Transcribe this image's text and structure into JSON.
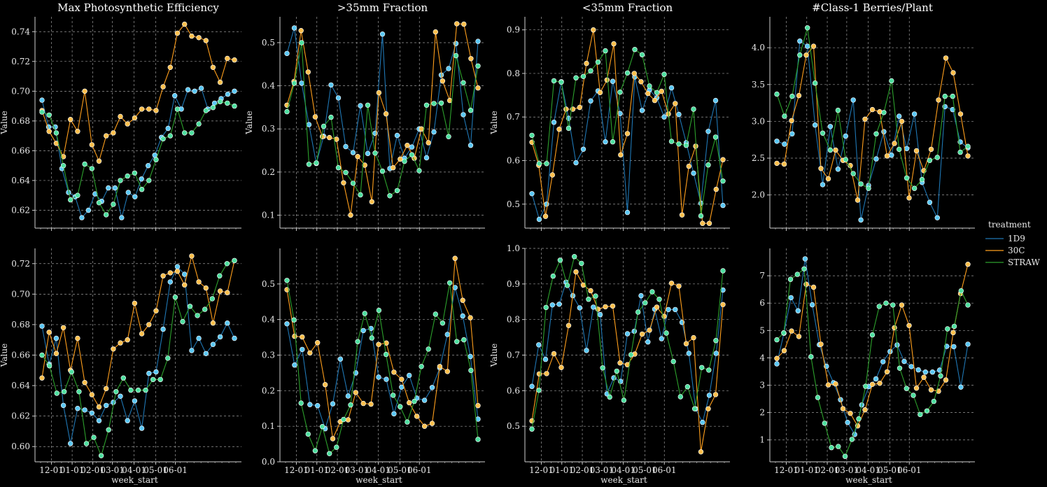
{
  "colors": {
    "1D9": "#1f77b4",
    "30C": "#ff9f1c",
    "STRAW": "#2ca02c",
    "background": "#000000",
    "grid": "#9a9a9a"
  },
  "legend": {
    "title": "treatment",
    "placement": "right-center",
    "entries": [
      "1D9",
      "30C",
      "STRAW"
    ]
  },
  "chart_data": [
    {
      "type": "line",
      "title": "Max Photosynthetic Efficiency",
      "xlabel": "",
      "ylabel": "Value",
      "ylim": [
        0.608,
        0.75
      ],
      "yticks": [
        "0.62",
        "0.64",
        "0.66",
        "0.68",
        "0.70",
        "0.72",
        "0.74"
      ],
      "x_ticks": [],
      "grid": true,
      "series": [
        {
          "name": "1D9",
          "values": [
            0.694,
            0.676,
            0.676,
            0.648,
            0.632,
            0.629,
            0.615,
            0.62,
            0.631,
            0.626,
            0.635,
            0.635,
            0.615,
            0.632,
            0.629,
            0.641,
            0.65,
            0.657,
            0.669,
            0.675,
            0.697,
            0.688,
            0.701,
            0.7,
            0.702,
            0.688,
            0.692,
            0.695,
            0.698,
            0.7
          ]
        },
        {
          "name": "30C",
          "values": [
            0.687,
            0.673,
            0.665,
            0.656,
            0.681,
            0.673,
            0.7,
            0.664,
            0.653,
            0.67,
            0.672,
            0.683,
            0.678,
            0.682,
            0.688,
            0.688,
            0.687,
            0.703,
            0.716,
            0.739,
            0.745,
            0.737,
            0.736,
            0.734,
            0.716,
            0.706,
            0.722,
            0.721
          ]
        },
        {
          "name": "STRAW",
          "values": [
            0.686,
            0.684,
            0.672,
            0.65,
            0.627,
            0.63,
            0.651,
            0.648,
            0.625,
            0.617,
            0.624,
            0.64,
            0.643,
            0.645,
            0.634,
            0.64,
            0.654,
            0.668,
            0.67,
            0.688,
            0.672,
            0.672,
            0.678,
            0.687,
            0.689,
            0.693,
            0.692,
            0.69
          ]
        }
      ]
    },
    {
      "type": "line",
      "title": ">35mm Fraction",
      "xlabel": "",
      "ylabel": "Value",
      "ylim": [
        0.07,
        0.56
      ],
      "yticks": [
        "0.1",
        "0.2",
        "0.3",
        "0.4",
        "0.5"
      ],
      "x_ticks": [],
      "grid": true,
      "series": [
        {
          "name": "1D9",
          "values": [
            0.475,
            0.534,
            0.406,
            0.31,
            0.22,
            0.283,
            0.402,
            0.372,
            0.259,
            0.245,
            0.354,
            0.243,
            0.29,
            0.52,
            0.208,
            0.285,
            0.232,
            0.258,
            0.3,
            0.233,
            0.293,
            0.425,
            0.44,
            0.498,
            0.333,
            0.262,
            0.503
          ]
        },
        {
          "name": "30C",
          "values": [
            0.355,
            0.41,
            0.528,
            0.432,
            0.328,
            0.282,
            0.28,
            0.276,
            0.175,
            0.1,
            0.236,
            0.216,
            0.131,
            0.384,
            0.335,
            0.21,
            0.23,
            0.262,
            0.232,
            0.3,
            0.268,
            0.525,
            0.411,
            0.366,
            0.544,
            0.543,
            0.463,
            0.395
          ]
        },
        {
          "name": "STRAW",
          "values": [
            0.34,
            0.406,
            0.5,
            0.218,
            0.221,
            0.306,
            0.327,
            0.21,
            0.199,
            0.174,
            0.147,
            0.355,
            0.244,
            0.202,
            0.145,
            0.157,
            0.225,
            0.24,
            0.203,
            0.355,
            0.359,
            0.36,
            0.282,
            0.47,
            0.407,
            0.343,
            0.446
          ]
        }
      ]
    },
    {
      "type": "line",
      "title": "<35mm Fraction",
      "xlabel": "",
      "ylabel": "Value",
      "ylim": [
        0.445,
        0.93
      ],
      "yticks": [
        "0.5",
        "0.6",
        "0.7",
        "0.8",
        "0.9"
      ],
      "x_ticks": [],
      "grid": true,
      "series": [
        {
          "name": "1D9",
          "values": [
            0.524,
            0.465,
            0.5,
            0.688,
            0.781,
            0.697,
            0.595,
            0.626,
            0.737,
            0.76,
            0.643,
            0.782,
            0.708,
            0.481,
            0.792,
            0.715,
            0.762,
            0.744,
            0.7,
            0.767,
            0.706,
            0.641,
            0.571,
            0.502,
            0.667,
            0.738,
            0.497
          ]
        },
        {
          "name": "30C",
          "values": [
            0.642,
            0.589,
            0.472,
            0.567,
            0.672,
            0.718,
            0.718,
            0.722,
            0.823,
            0.9,
            0.756,
            0.785,
            0.868,
            0.613,
            0.662,
            0.8,
            0.781,
            0.754,
            0.738,
            0.759,
            0.707,
            0.731,
            0.475,
            0.587,
            0.633,
            0.456,
            0.456,
            0.534,
            0.602
          ]
        },
        {
          "name": "STRAW",
          "values": [
            0.658,
            0.593,
            0.593,
            0.783,
            0.78,
            0.674,
            0.79,
            0.793,
            0.806,
            0.826,
            0.852,
            0.643,
            0.757,
            0.801,
            0.855,
            0.843,
            0.771,
            0.756,
            0.798,
            0.644,
            0.638,
            0.635,
            0.718,
            0.473,
            0.59,
            0.654,
            0.553
          ]
        }
      ]
    },
    {
      "type": "line",
      "title": "#Class-1 Berries/Plant",
      "xlabel": "",
      "ylabel": "",
      "ylim": [
        1.55,
        4.42
      ],
      "yticks": [
        "2.0",
        "2.5",
        "3.0",
        "3.5",
        "4.0"
      ],
      "x_ticks": [],
      "grid": true,
      "series": [
        {
          "name": "1D9",
          "values": [
            2.73,
            2.69,
            2.83,
            4.09,
            4.02,
            2.95,
            2.14,
            2.93,
            2.35,
            2.8,
            3.29,
            1.66,
            2.13,
            2.49,
            2.86,
            2.54,
            3.07,
            2.63,
            3.1,
            2.17,
            1.9,
            1.69,
            3.2,
            3.16,
            2.72,
            2.64
          ]
        },
        {
          "name": "30C",
          "values": [
            2.43,
            2.42,
            3.01,
            3.35,
            3.9,
            4.02,
            2.36,
            2.22,
            2.61,
            2.47,
            2.4,
            1.93,
            3.03,
            3.16,
            3.13,
            2.53,
            2.7,
            3.0,
            1.96,
            2.6,
            2.33,
            2.62,
            3.29,
            3.86,
            3.66,
            3.1,
            2.53
          ]
        },
        {
          "name": "STRAW",
          "values": [
            3.37,
            3.07,
            3.34,
            3.9,
            4.27,
            3.52,
            2.84,
            2.61,
            3.15,
            2.48,
            2.29,
            2.15,
            2.09,
            2.83,
            3.12,
            3.55,
            2.62,
            2.23,
            2.09,
            2.21,
            2.47,
            2.51,
            3.34,
            3.34,
            2.58,
            2.66
          ]
        }
      ]
    },
    {
      "type": "line",
      "title": "",
      "xlabel": "week_start",
      "ylabel": "Value",
      "ylim": [
        0.59,
        0.73
      ],
      "yticks": [
        "0.60",
        "0.62",
        "0.64",
        "0.66",
        "0.68",
        "0.70",
        "0.72"
      ],
      "x_ticks": [
        "12-01",
        "01-01",
        "02-01",
        "03-01",
        "04-01",
        "05-01",
        "06-01"
      ],
      "grid": true,
      "series": [
        {
          "name": "1D9",
          "values": [
            0.679,
            0.654,
            0.671,
            0.627,
            0.602,
            0.625,
            0.624,
            0.622,
            0.617,
            0.627,
            0.629,
            0.633,
            0.617,
            0.63,
            0.612,
            0.648,
            0.649,
            0.677,
            0.708,
            0.718,
            0.713,
            0.663,
            0.671,
            0.661,
            0.667,
            0.672,
            0.681,
            0.671
          ]
        },
        {
          "name": "30C",
          "values": [
            0.645,
            0.675,
            0.661,
            0.678,
            0.65,
            0.671,
            0.642,
            0.634,
            0.626,
            0.638,
            0.664,
            0.668,
            0.67,
            0.694,
            0.674,
            0.68,
            0.689,
            0.712,
            0.714,
            0.715,
            0.706,
            0.725,
            0.708,
            0.704,
            0.681,
            0.702,
            0.701,
            0.722
          ]
        },
        {
          "name": "STRAW",
          "values": [
            0.66,
            0.653,
            0.635,
            0.636,
            0.649,
            0.636,
            0.602,
            0.606,
            0.594,
            0.611,
            0.636,
            0.645,
            0.637,
            0.637,
            0.637,
            0.644,
            0.644,
            0.658,
            0.698,
            0.682,
            0.692,
            0.686,
            0.69,
            0.697,
            0.712,
            0.72,
            0.722
          ]
        }
      ]
    },
    {
      "type": "line",
      "title": "",
      "xlabel": "week_start",
      "ylabel": "",
      "ylim": [
        0.0,
        0.6
      ],
      "yticks": [
        "0.0",
        "0.1",
        "0.2",
        "0.3",
        "0.4",
        "0.5"
      ],
      "x_ticks": [
        "12-01",
        "01-01",
        "02-01",
        "03-01",
        "04-01",
        "05-01",
        "06-01"
      ],
      "grid": true,
      "series": [
        {
          "name": "1D9",
          "values": [
            0.388,
            0.272,
            0.316,
            0.161,
            0.158,
            0.093,
            0.163,
            0.289,
            0.185,
            0.25,
            0.369,
            0.375,
            0.238,
            0.232,
            0.135,
            0.21,
            0.243,
            0.179,
            0.173,
            0.209,
            0.264,
            0.358,
            0.49,
            0.41,
            0.296,
            0.12
          ]
        },
        {
          "name": "30C",
          "values": [
            0.484,
            0.353,
            0.351,
            0.306,
            0.335,
            0.217,
            0.065,
            0.113,
            0.118,
            0.195,
            0.164,
            0.162,
            0.33,
            0.334,
            0.252,
            0.232,
            0.166,
            0.128,
            0.1,
            0.108,
            0.268,
            0.254,
            0.572,
            0.454,
            0.405,
            0.158
          ]
        },
        {
          "name": "STRAW",
          "values": [
            0.51,
            0.399,
            0.165,
            0.078,
            0.031,
            0.099,
            0.023,
            0.041,
            0.119,
            0.16,
            0.338,
            0.417,
            0.348,
            0.426,
            0.302,
            0.187,
            0.155,
            0.112,
            0.17,
            0.268,
            0.317,
            0.415,
            0.39,
            0.503,
            0.338,
            0.343,
            0.257,
            0.063
          ]
        }
      ]
    },
    {
      "type": "line",
      "title": "",
      "xlabel": "week_start",
      "ylabel": "Value",
      "ylim": [
        0.4,
        1.0
      ],
      "yticks": [
        "0.5",
        "0.6",
        "0.7",
        "0.8",
        "0.9",
        "1.0"
      ],
      "x_ticks": [
        "12-01",
        "01-01",
        "02-01",
        "03-01",
        "04-01",
        "05-01",
        "06-01"
      ],
      "grid": true,
      "series": [
        {
          "name": "1D9",
          "values": [
            0.612,
            0.729,
            0.688,
            0.841,
            0.843,
            0.905,
            0.867,
            0.833,
            0.713,
            0.835,
            0.814,
            0.591,
            0.636,
            0.626,
            0.76,
            0.767,
            0.867,
            0.737,
            0.829,
            0.746,
            0.828,
            0.828,
            0.792,
            0.705,
            0.549,
            0.511,
            0.587,
            0.705,
            0.883
          ]
        },
        {
          "name": "30C",
          "values": [
            0.515,
            0.647,
            0.648,
            0.704,
            0.665,
            0.783,
            0.934,
            0.897,
            0.881,
            0.829,
            0.836,
            0.838,
            0.678,
            0.673,
            0.703,
            0.759,
            0.77,
            0.835,
            0.809,
            0.902,
            0.894,
            0.732,
            0.749,
            0.428,
            0.549,
            0.589,
            0.842
          ]
        },
        {
          "name": "STRAW",
          "values": [
            0.492,
            0.601,
            0.834,
            0.922,
            0.967,
            0.896,
            0.977,
            0.958,
            0.857,
            0.866,
            0.664,
            0.582,
            0.655,
            0.573,
            0.701,
            0.821,
            0.847,
            0.878,
            0.857,
            0.762,
            0.682,
            0.583,
            0.611,
            0.549,
            0.665,
            0.658,
            0.741,
            0.937
          ]
        }
      ]
    },
    {
      "type": "line",
      "title": "",
      "xlabel": "week_start",
      "ylabel": "",
      "ylim": [
        0.2,
        8.0
      ],
      "yticks": [
        "1",
        "2",
        "3",
        "4",
        "5",
        "6",
        "7"
      ],
      "x_ticks": [
        "12-01",
        "01-01",
        "02-01",
        "03-01",
        "04-01",
        "05-01",
        "06-01"
      ],
      "grid": true,
      "series": [
        {
          "name": "1D9",
          "values": [
            3.78,
            4.9,
            6.2,
            5.72,
            7.62,
            5.94,
            4.48,
            3.69,
            3.09,
            2.47,
            1.64,
            1.2,
            2.28,
            2.95,
            3.23,
            3.86,
            4.23,
            4.47,
            3.87,
            3.68,
            3.56,
            3.48,
            3.48,
            3.55,
            4.42,
            4.41,
            2.93,
            4.5
          ]
        },
        {
          "name": "30C",
          "values": [
            3.98,
            4.26,
            4.98,
            4.78,
            6.69,
            6.58,
            4.5,
            3.01,
            3.05,
            2.14,
            1.97,
            1.51,
            2.1,
            3.03,
            3.07,
            3.49,
            5.1,
            5.93,
            5.18,
            2.89,
            3.29,
            2.83,
            2.78,
            3.19,
            4.92,
            6.35,
            7.42
          ]
        },
        {
          "name": "STRAW",
          "values": [
            4.66,
            4.91,
            6.87,
            7.05,
            7.25,
            4.04,
            2.55,
            1.61,
            0.72,
            0.76,
            0.4,
            1.02,
            1.77,
            2.96,
            4.84,
            5.88,
            6.0,
            5.93,
            3.62,
            2.88,
            2.63,
            1.93,
            2.06,
            2.41,
            3.34,
            5.06,
            5.15,
            6.45,
            5.93
          ]
        }
      ]
    }
  ]
}
